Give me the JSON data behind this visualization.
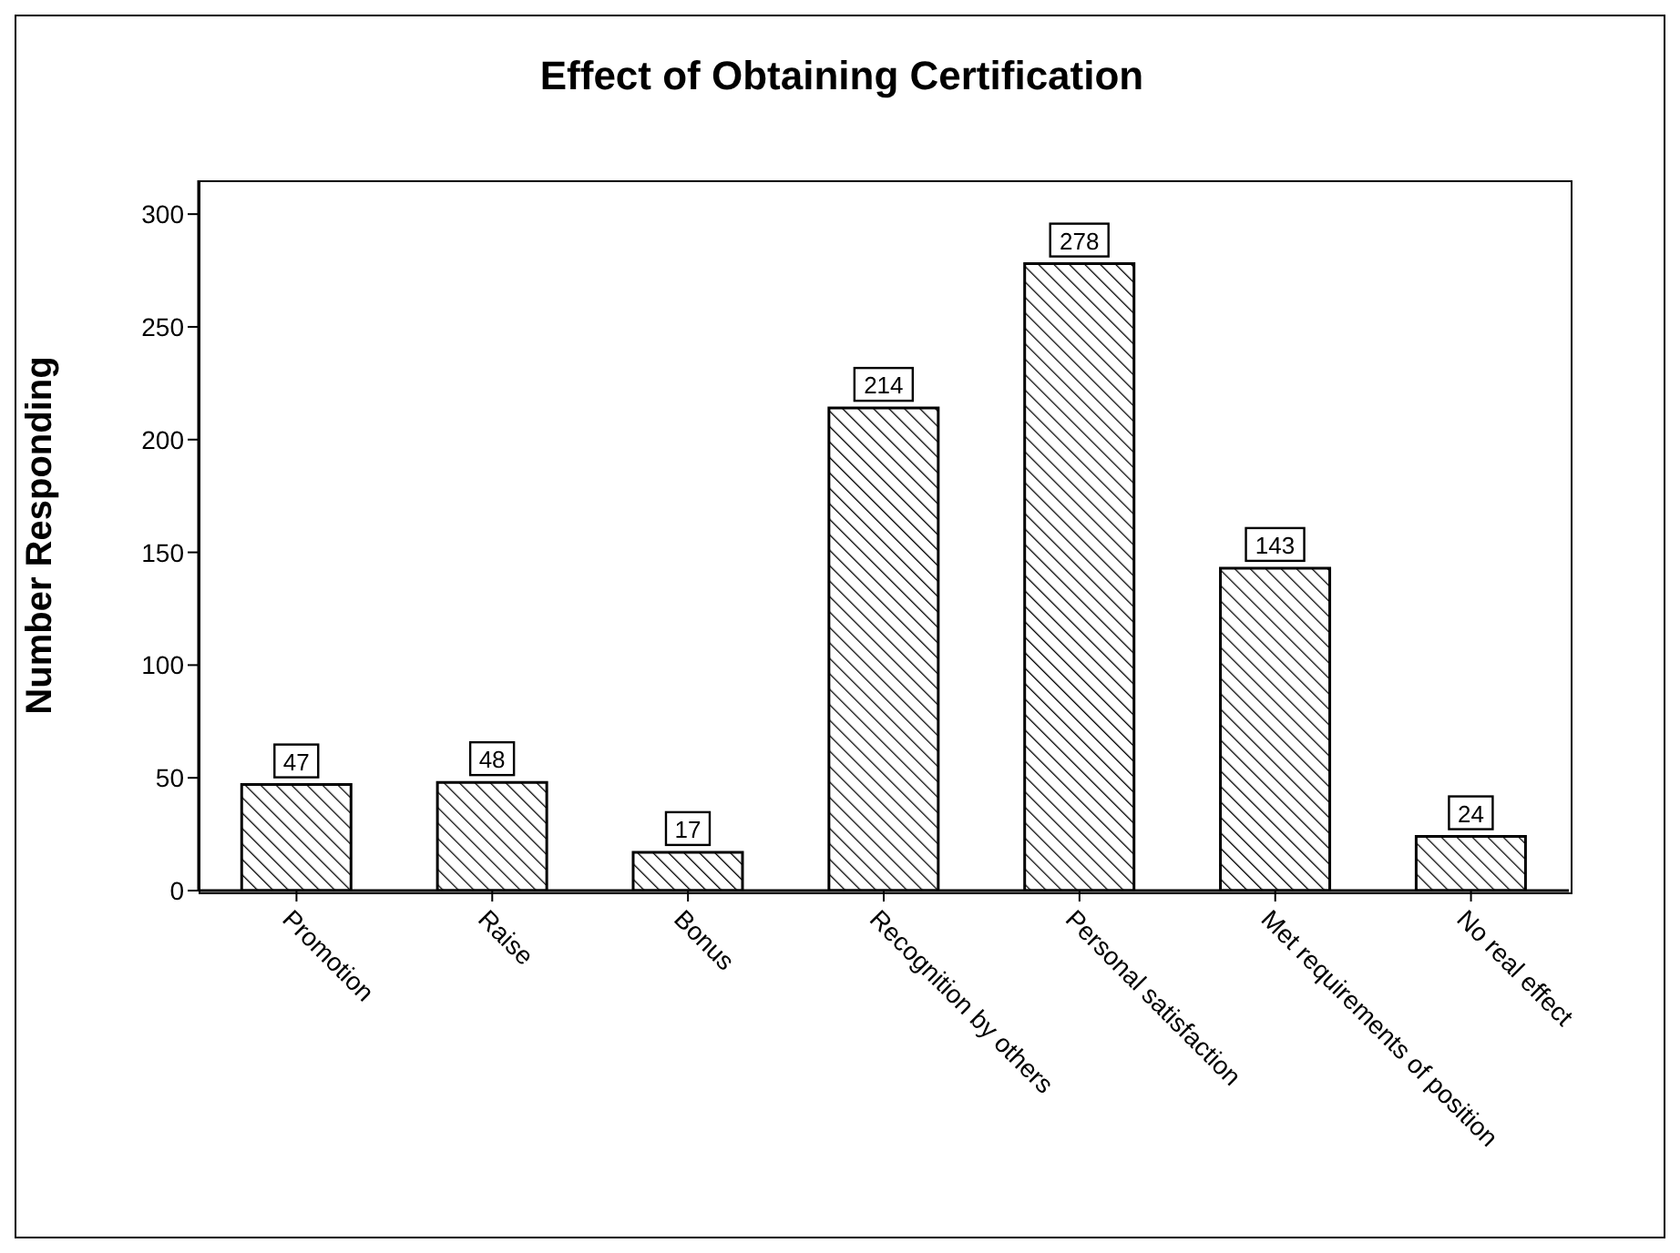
{
  "chart_data": {
    "type": "bar",
    "title": "Effect of Obtaining Certification",
    "ylabel": "Number Responding",
    "categories": [
      "Promotion",
      "Raise",
      "Bonus",
      "Recognition by others",
      "Personal satisfaction",
      "Met requirements of position",
      "No real effect"
    ],
    "values": [
      47,
      48,
      17,
      214,
      278,
      143,
      24
    ],
    "color": "#000000",
    "ylim": [
      0,
      315
    ],
    "yticks": [
      0,
      50,
      100,
      150,
      200,
      250,
      300
    ],
    "data_labels": true
  }
}
